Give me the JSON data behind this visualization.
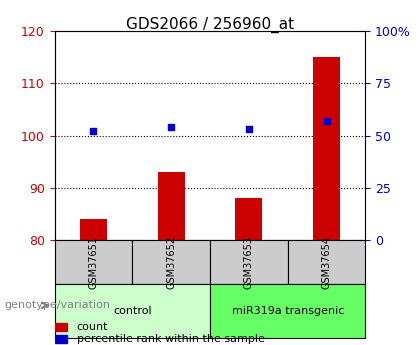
{
  "title": "GDS2066 / 256960_at",
  "samples": [
    "GSM37651",
    "GSM37652",
    "GSM37653",
    "GSM37654"
  ],
  "bar_values": [
    84,
    93,
    88,
    115
  ],
  "bar_color": "#cc0000",
  "scatter_values": [
    52,
    54,
    53,
    57
  ],
  "scatter_color": "#0000cc",
  "ylim_left": [
    80,
    120
  ],
  "ylim_right": [
    0,
    100
  ],
  "yticks_left": [
    80,
    90,
    100,
    110,
    120
  ],
  "yticks_right": [
    0,
    25,
    50,
    75,
    100
  ],
  "ytick_labels_right": [
    "0",
    "25",
    "50",
    "75",
    "100%"
  ],
  "groups": [
    {
      "label": "control",
      "indices": [
        0,
        1
      ],
      "color": "#ccffcc"
    },
    {
      "label": "miR319a transgenic",
      "indices": [
        2,
        3
      ],
      "color": "#66ff66"
    }
  ],
  "legend_count_label": "count",
  "legend_percentile_label": "percentile rank within the sample",
  "genotype_label": "genotype/variation",
  "background_color": "#ffffff",
  "plot_bg_color": "#ffffff",
  "grid_color": "#000000",
  "title_fontsize": 11,
  "tick_fontsize": 9,
  "label_fontsize": 9
}
